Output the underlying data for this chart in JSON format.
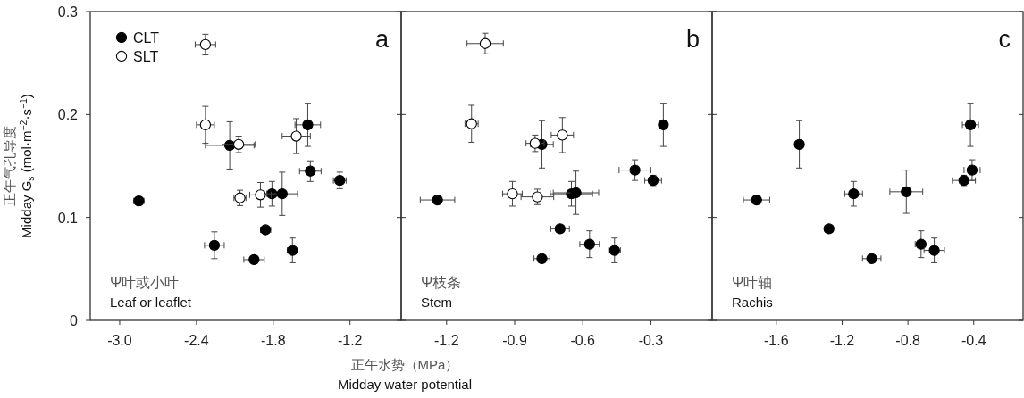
{
  "chart_data": [
    {
      "type": "scatter",
      "title": "a",
      "ylabel": "正午气孔导度\nMidday G$_{s}$ (mol·m$^{−2}$·s$^{−1}$)",
      "annotations": [
        "Ψ叶或小叶\nLeaf or leaflet"
      ],
      "legend": "top left",
      "marker": "circle",
      "xlim": [
        -3.23,
        -0.8
      ],
      "ylim": [
        0,
        0.3
      ],
      "xticks": [
        {
          "value": -3.0,
          "label": "-3.0"
        },
        {
          "value": -2.4,
          "label": "-2.4"
        },
        {
          "value": -1.8,
          "label": "-1.8"
        },
        {
          "value": -1.2,
          "label": "-1.2"
        }
      ],
      "yticks": [
        0,
        0.1,
        0.2,
        0.3
      ],
      "series": [
        {
          "name": "CLT",
          "color": "#000000",
          "x": [
            -2.85,
            -2.14,
            -1.53,
            -1.51,
            -1.28,
            -1.81,
            -1.73,
            -1.86,
            -2.26,
            -1.95,
            -1.65
          ],
          "values": [
            0.116,
            0.17,
            0.19,
            0.145,
            0.136,
            0.123,
            0.123,
            0.088,
            0.073,
            0.059,
            0.068
          ],
          "xerrors": [
            0.04,
            0.19,
            0.1,
            0.084,
            0.05,
            0.058,
            0.12,
            0.04,
            0.077,
            0.08,
            0.04
          ],
          "errors": [
            0.004,
            0.023,
            0.021,
            0.01,
            0.008,
            0.012,
            0.021,
            null,
            0.013,
            null,
            0.012
          ]
        },
        {
          "name": "SLT",
          "color": "#ffffff",
          "x": [
            -2.33,
            -2.33,
            -2.07,
            -1.62,
            -1.9,
            -2.06
          ],
          "values": [
            0.268,
            0.19,
            0.171,
            0.179,
            0.122,
            0.119
          ],
          "xerrors": [
            0.08,
            0.07,
            0.13,
            0.11,
            0.084,
            0.047
          ],
          "errors": [
            0.01,
            0.018,
            0.008,
            0.017,
            0.012,
            0.0075
          ]
        }
      ]
    },
    {
      "type": "scatter",
      "title": "b",
      "xlabel": "正午水势（MPa）\nMidday water potential",
      "annotations": [
        "Ψ枝条\nStem"
      ],
      "marker": "circle",
      "tick_labels": "x",
      "xlim": [
        -1.4,
        -0.03
      ],
      "ylim": [
        0,
        0.3
      ],
      "xticks": [
        {
          "value": -1.2,
          "label": "-1.2"
        },
        {
          "value": -0.9,
          "label": "-0.9"
        },
        {
          "value": -0.6,
          "label": "-0.6"
        },
        {
          "value": -0.3,
          "label": "-0.3"
        }
      ],
      "yticks": [
        0,
        0.1,
        0.2,
        0.3
      ],
      "series": [
        {
          "color": "#000000",
          "x": [
            -1.24,
            -0.78,
            -0.245,
            -0.37,
            -0.29,
            -0.65,
            -0.63,
            -0.7,
            -0.57,
            -0.46,
            -0.78
          ],
          "values": [
            0.117,
            0.171,
            0.19,
            0.146,
            0.136,
            0.123,
            0.124,
            0.089,
            0.074,
            0.068,
            0.06
          ],
          "xerrors": [
            0.076,
            0.05,
            null,
            0.07,
            0.037,
            0.093,
            0.1,
            0.041,
            0.043,
            0.026,
            0.035
          ],
          "errors": [
            0.0035,
            0.023,
            0.021,
            0.01,
            0.005,
            0.012,
            0.021,
            0.0035,
            0.013,
            0.012,
            null
          ]
        },
        {
          "color": "#ffffff",
          "x": [
            -1.03,
            -1.09,
            -0.81,
            -0.69,
            -0.91,
            -0.8
          ],
          "values": [
            0.269,
            0.191,
            0.172,
            0.18,
            0.123,
            0.12
          ],
          "xerrors": [
            0.08,
            0.029,
            0.04,
            0.049,
            0.043,
            0.072
          ],
          "errors": [
            0.01,
            0.018,
            0.008,
            0.017,
            0.012,
            0.0075
          ]
        }
      ]
    },
    {
      "type": "scatter",
      "title": "c",
      "annotations": [
        "Ψ叶轴\nRachis"
      ],
      "marker": "circle",
      "tick_labels": "x",
      "xlim": [
        -1.99,
        -0.1
      ],
      "ylim": [
        0,
        0.3
      ],
      "xticks": [
        {
          "value": -1.6,
          "label": "-1.6"
        },
        {
          "value": -1.2,
          "label": "-1.2"
        },
        {
          "value": -0.8,
          "label": "-0.8"
        },
        {
          "value": -0.4,
          "label": "-0.4"
        }
      ],
      "yticks": [
        0,
        0.1,
        0.2,
        0.3
      ],
      "series": [
        {
          "color": "#000000",
          "x": [
            -1.72,
            -1.46,
            -1.13,
            -1.28,
            -1.02,
            -0.81,
            -0.72,
            -0.64,
            -0.42,
            -0.41,
            -0.46
          ],
          "values": [
            0.117,
            0.171,
            0.123,
            0.089,
            0.06,
            0.125,
            0.074,
            0.068,
            0.19,
            0.146,
            0.136
          ],
          "xerrors": [
            0.08,
            0.027,
            0.054,
            0.024,
            0.056,
            0.1,
            0.036,
            0.062,
            0.049,
            0.049,
            0.07
          ],
          "errors": [
            0.0035,
            0.023,
            0.012,
            0.0035,
            null,
            0.021,
            0.013,
            0.012,
            0.021,
            0.01,
            0.005
          ]
        }
      ]
    }
  ]
}
